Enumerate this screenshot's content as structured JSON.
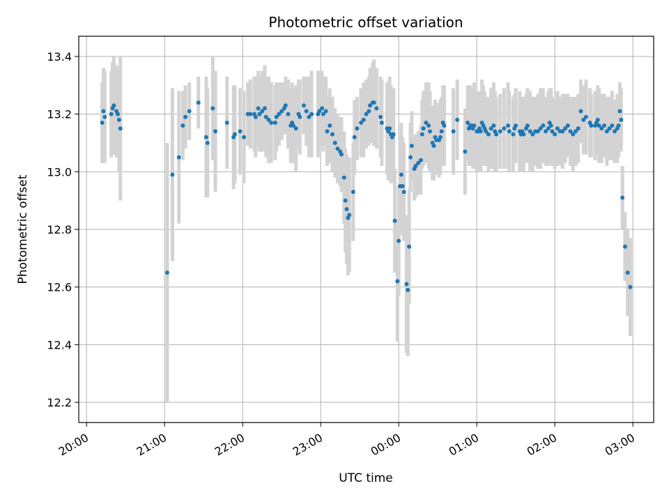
{
  "chart_data": {
    "type": "scatter",
    "title": "Photometric offset variation",
    "xlabel": "UTC time",
    "ylabel": "Photometric offset",
    "x_start": "20:00",
    "x_end": "03:00",
    "xlim": [
      "19:54",
      "03:16"
    ],
    "ylim": [
      12.13,
      13.47
    ],
    "x_ticks": [
      "20:00",
      "21:00",
      "22:00",
      "23:00",
      "00:00",
      "01:00",
      "02:00",
      "03:00"
    ],
    "y_ticks": [
      12.2,
      12.4,
      12.6,
      12.8,
      13.0,
      13.2,
      13.4
    ],
    "y_tick_labels": [
      "12.2",
      "12.4",
      "12.6",
      "12.8",
      "13.0",
      "13.2",
      "13.4"
    ],
    "grid": true,
    "point_color": "#1f77b4",
    "errorbar_color": "#d3d3d3",
    "series": [
      {
        "x": [
          "20:12",
          "20:13",
          "20:14",
          "20:19",
          "20:20",
          "20:21",
          "20:23",
          "20:24",
          "20:25",
          "20:26",
          "21:02",
          "21:06",
          "21:11",
          "21:14",
          "21:16",
          "21:19",
          "21:26",
          "21:32",
          "21:33",
          "21:37",
          "21:39",
          "21:48",
          "21:53",
          "21:54",
          "21:58",
          "22:01",
          "22:04",
          "22:06",
          "22:09",
          "22:10",
          "22:12",
          "22:13",
          "22:15",
          "22:17",
          "22:18",
          "22:20",
          "22:22",
          "22:25",
          "22:26",
          "22:28",
          "22:30",
          "22:32",
          "22:33",
          "22:35",
          "22:37",
          "22:38",
          "22:39",
          "22:41",
          "22:43",
          "22:44",
          "22:47",
          "22:49",
          "22:51",
          "22:53",
          "22:58",
          "22:59",
          "23:01",
          "23:02",
          "23:04",
          "23:05",
          "23:07",
          "23:09",
          "23:11",
          "23:13",
          "23:15",
          "23:16",
          "23:18",
          "23:19",
          "23:20",
          "23:21",
          "23:22",
          "23:25",
          "23:26",
          "23:28",
          "23:31",
          "23:33",
          "23:35",
          "23:37",
          "23:38",
          "23:40",
          "23:41",
          "23:43",
          "23:46",
          "23:47",
          "23:51",
          "23:52",
          "23:53",
          "23:54",
          "23:55",
          "23:56",
          "23:57",
          "23:59",
          "00:00",
          "00:01",
          "00:02",
          "00:03",
          "00:04",
          "00:06",
          "00:07",
          "00:08",
          "00:09",
          "00:10",
          "00:12",
          "00:13",
          "00:15",
          "00:17",
          "00:18",
          "00:19",
          "00:21",
          "00:23",
          "00:24",
          "00:26",
          "00:27",
          "00:28",
          "00:29",
          "00:31",
          "00:32",
          "00:33",
          "00:34",
          "00:35",
          "00:42",
          "00:45",
          "00:51",
          "00:53",
          "00:54",
          "00:55",
          "00:56",
          "00:57",
          "00:58",
          "01:00",
          "01:01",
          "01:02",
          "01:03",
          "01:04",
          "01:05",
          "01:06",
          "01:07",
          "01:09",
          "01:11",
          "01:13",
          "01:14",
          "01:15",
          "01:18",
          "01:21",
          "01:24",
          "01:25",
          "01:28",
          "01:29",
          "01:30",
          "01:33",
          "01:34",
          "01:35",
          "01:36",
          "01:38",
          "01:39",
          "01:41",
          "01:43",
          "01:45",
          "01:47",
          "01:49",
          "01:51",
          "01:53",
          "01:55",
          "01:56",
          "01:57",
          "01:58",
          "02:00",
          "02:02",
          "02:04",
          "02:06",
          "02:08",
          "02:10",
          "02:12",
          "02:14",
          "02:16",
          "02:18",
          "02:20",
          "02:22",
          "02:24",
          "02:27",
          "02:28",
          "02:31",
          "02:32",
          "02:33",
          "02:34",
          "02:36",
          "02:38",
          "02:40",
          "02:42",
          "02:44",
          "02:46",
          "02:48",
          "02:49",
          "02:50",
          "02:51",
          "02:52",
          "02:54",
          "02:56",
          "02:58"
        ],
        "y": [
          13.17,
          13.21,
          13.19,
          13.2,
          13.22,
          13.23,
          13.21,
          13.2,
          13.18,
          13.15,
          12.65,
          12.99,
          13.05,
          13.16,
          13.19,
          13.21,
          13.24,
          13.12,
          13.1,
          13.22,
          13.14,
          13.17,
          13.12,
          13.13,
          13.14,
          13.12,
          13.2,
          13.2,
          13.2,
          13.19,
          13.22,
          13.2,
          13.21,
          13.22,
          13.19,
          13.18,
          13.17,
          13.17,
          13.19,
          13.2,
          13.21,
          13.22,
          13.23,
          13.2,
          13.16,
          13.17,
          13.16,
          13.15,
          13.2,
          13.19,
          13.23,
          13.21,
          13.19,
          13.2,
          13.2,
          13.21,
          13.22,
          13.2,
          13.21,
          13.14,
          13.16,
          13.13,
          13.1,
          13.08,
          13.07,
          13.06,
          12.98,
          12.9,
          12.87,
          12.84,
          12.85,
          12.93,
          13.12,
          13.15,
          13.17,
          13.18,
          13.2,
          13.21,
          13.23,
          13.24,
          13.24,
          13.22,
          13.19,
          13.17,
          13.15,
          13.14,
          13.15,
          13.13,
          13.12,
          13.13,
          12.83,
          12.62,
          12.76,
          12.95,
          12.99,
          12.95,
          12.93,
          12.61,
          12.59,
          12.74,
          13.05,
          13.09,
          13.01,
          13.02,
          13.03,
          13.04,
          13.13,
          13.15,
          13.17,
          13.16,
          13.14,
          13.1,
          13.09,
          13.12,
          13.11,
          13.11,
          13.12,
          13.14,
          13.17,
          13.16,
          13.14,
          13.18,
          13.07,
          13.17,
          13.15,
          13.16,
          13.16,
          13.15,
          13.16,
          13.14,
          13.14,
          13.15,
          13.14,
          13.17,
          13.16,
          13.15,
          13.14,
          13.13,
          13.15,
          13.16,
          13.14,
          13.13,
          13.14,
          13.15,
          13.16,
          13.14,
          13.13,
          13.15,
          13.16,
          13.14,
          13.13,
          13.14,
          13.13,
          13.15,
          13.16,
          13.14,
          13.13,
          13.14,
          13.14,
          13.15,
          13.16,
          13.14,
          13.15,
          13.17,
          13.16,
          13.14,
          13.13,
          13.15,
          13.14,
          13.14,
          13.15,
          13.16,
          13.14,
          13.13,
          13.14,
          13.15,
          13.21,
          13.18,
          13.19,
          13.17,
          13.16,
          13.16,
          13.17,
          13.18,
          13.16,
          13.15,
          13.16,
          13.14,
          13.15,
          13.16,
          13.14,
          13.15,
          13.16,
          13.21,
          13.18,
          12.91,
          12.74,
          12.65,
          12.6
        ],
        "err": [
          0.14,
          0.15,
          0.16,
          0.15,
          0.16,
          0.17,
          0.16,
          0.15,
          0.18,
          0.25,
          0.45,
          0.3,
          0.23,
          0.12,
          0.11,
          0.1,
          0.09,
          0.21,
          0.19,
          0.18,
          0.21,
          0.16,
          0.18,
          0.17,
          0.15,
          0.16,
          0.11,
          0.12,
          0.13,
          0.14,
          0.13,
          0.13,
          0.14,
          0.15,
          0.14,
          0.15,
          0.14,
          0.13,
          0.12,
          0.11,
          0.1,
          0.09,
          0.1,
          0.12,
          0.13,
          0.14,
          0.13,
          0.15,
          0.12,
          0.13,
          0.1,
          0.12,
          0.14,
          0.15,
          0.15,
          0.14,
          0.13,
          0.13,
          0.12,
          0.12,
          0.13,
          0.13,
          0.12,
          0.12,
          0.12,
          0.13,
          0.16,
          0.18,
          0.19,
          0.2,
          0.2,
          0.17,
          0.13,
          0.11,
          0.12,
          0.13,
          0.12,
          0.12,
          0.13,
          0.14,
          0.15,
          0.14,
          0.14,
          0.15,
          0.16,
          0.17,
          0.18,
          0.17,
          0.16,
          0.16,
          0.18,
          0.21,
          0.19,
          0.17,
          0.18,
          0.17,
          0.17,
          0.24,
          0.23,
          0.2,
          0.12,
          0.12,
          0.11,
          0.11,
          0.11,
          0.12,
          0.12,
          0.13,
          0.14,
          0.15,
          0.14,
          0.13,
          0.12,
          0.13,
          0.12,
          0.13,
          0.13,
          0.12,
          0.13,
          0.14,
          0.15,
          0.14,
          0.15,
          0.13,
          0.13,
          0.14,
          0.13,
          0.14,
          0.15,
          0.14,
          0.14,
          0.13,
          0.14,
          0.15,
          0.14,
          0.13,
          0.12,
          0.13,
          0.14,
          0.15,
          0.14,
          0.13,
          0.13,
          0.14,
          0.15,
          0.14,
          0.13,
          0.12,
          0.13,
          0.14,
          0.13,
          0.12,
          0.13,
          0.12,
          0.13,
          0.14,
          0.13,
          0.12,
          0.13,
          0.14,
          0.13,
          0.12,
          0.13,
          0.12,
          0.13,
          0.12,
          0.12,
          0.13,
          0.12,
          0.13,
          0.12,
          0.11,
          0.12,
          0.13,
          0.12,
          0.12,
          0.11,
          0.12,
          0.13,
          0.12,
          0.11,
          0.12,
          0.11,
          0.12,
          0.13,
          0.12,
          0.11,
          0.12,
          0.11,
          0.12,
          0.11,
          0.12,
          0.11,
          0.1,
          0.11,
          0.11,
          0.12,
          0.15,
          0.17
        ]
      }
    ]
  }
}
